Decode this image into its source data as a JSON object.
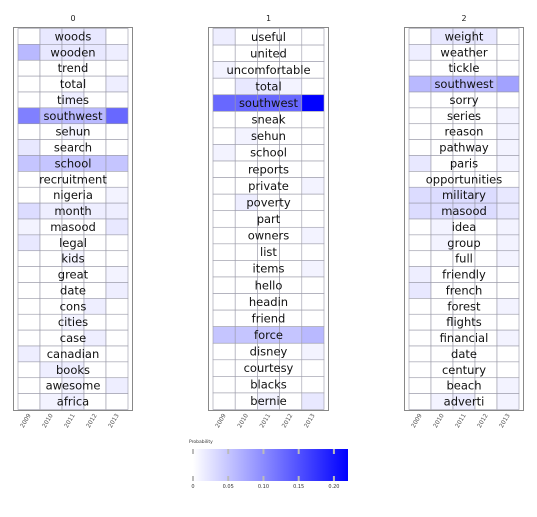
{
  "chart_data": {
    "type": "heatmap",
    "x_categories": [
      "2009",
      "2010",
      "2011",
      "2012",
      "2013"
    ],
    "colorbar": {
      "title": "Probability",
      "range": [
        0,
        0.22
      ],
      "ticks": [
        0,
        0.05,
        0.1,
        0.15,
        0.2
      ],
      "tick_labels": [
        "0",
        "0.05",
        "0.10",
        "0.15",
        "0.20"
      ],
      "color_low": "#ffffff",
      "color_high": "#0000ff"
    },
    "panels": [
      {
        "title": "0",
        "words": [
          "woods",
          "wooden",
          "trend",
          "total",
          "times",
          "southwest",
          "sehun",
          "search",
          "school",
          "recruitment",
          "nigeria",
          "month",
          "masood",
          "legal",
          "kids",
          "great",
          "date",
          "cons",
          "cities",
          "case",
          "canadian",
          "books",
          "awesome",
          "africa"
        ],
        "values": [
          [
            0,
            0.02,
            0.02,
            0.02,
            0
          ],
          [
            0.06,
            0.02,
            0.02,
            0.02,
            0.015
          ],
          [
            0,
            0,
            0,
            0,
            0
          ],
          [
            0,
            0,
            0,
            0,
            0.015
          ],
          [
            0,
            0,
            0.015,
            0,
            0
          ],
          [
            0.11,
            0.06,
            0.06,
            0.06,
            0.13
          ],
          [
            0,
            0,
            0.01,
            0,
            0
          ],
          [
            0.02,
            0,
            0,
            0,
            0
          ],
          [
            0.05,
            0.05,
            0.05,
            0.05,
            0.05
          ],
          [
            0,
            0,
            0,
            0,
            0
          ],
          [
            0,
            0,
            0,
            0,
            0.01
          ],
          [
            0.03,
            0.015,
            0.015,
            0.015,
            0.015
          ],
          [
            0.01,
            0,
            0,
            0,
            0.02
          ],
          [
            0.02,
            0,
            0,
            0,
            0
          ],
          [
            0,
            0,
            0.01,
            0,
            0
          ],
          [
            0,
            0,
            0,
            0,
            0.01
          ],
          [
            0,
            0,
            0,
            0,
            0.015
          ],
          [
            0,
            0,
            0,
            0.015,
            0
          ],
          [
            0,
            0,
            0.01,
            0,
            0
          ],
          [
            0,
            0,
            0,
            0.015,
            0
          ],
          [
            0.015,
            0,
            0,
            0,
            0
          ],
          [
            0,
            0.015,
            0.015,
            0,
            0
          ],
          [
            0,
            0,
            0.01,
            0,
            0.015
          ],
          [
            0,
            0.01,
            0.015,
            0,
            0
          ]
        ]
      },
      {
        "title": "1",
        "words": [
          "useful",
          "united",
          "uncomfortable",
          "total",
          "southwest",
          "sneak",
          "sehun",
          "school",
          "reports",
          "private",
          "poverty",
          "part",
          "owners",
          "list",
          "items",
          "hello",
          "headin",
          "friend",
          "force",
          "disney",
          "courtesy",
          "blacks",
          "bernie"
        ],
        "values": [
          [
            0.015,
            0,
            0,
            0,
            0
          ],
          [
            0,
            0,
            0,
            0,
            0
          ],
          [
            0.01,
            0,
            0,
            0,
            0
          ],
          [
            0,
            0.02,
            0.02,
            0.01,
            0
          ],
          [
            0.13,
            0.13,
            0.13,
            0.13,
            0.22
          ],
          [
            0,
            0,
            0,
            0,
            0
          ],
          [
            0,
            0.01,
            0,
            0,
            0
          ],
          [
            0.01,
            0,
            0,
            0,
            0
          ],
          [
            0,
            0,
            0,
            0,
            0
          ],
          [
            0,
            0,
            0,
            0,
            0.01
          ],
          [
            0,
            0.015,
            0,
            0,
            0
          ],
          [
            0,
            0,
            0,
            0,
            0
          ],
          [
            0,
            0,
            0,
            0,
            0.01
          ],
          [
            0,
            0,
            0,
            0,
            0
          ],
          [
            0,
            0,
            0,
            0,
            0.01
          ],
          [
            0,
            0,
            0,
            0,
            0
          ],
          [
            0,
            0,
            0,
            0,
            0
          ],
          [
            0,
            0,
            0,
            0,
            0
          ],
          [
            0.05,
            0.05,
            0.05,
            0.05,
            0.06
          ],
          [
            0,
            0,
            0,
            0,
            0.01
          ],
          [
            0,
            0,
            0,
            0,
            0
          ],
          [
            0,
            0,
            0,
            0,
            0
          ],
          [
            0,
            0,
            0.01,
            0,
            0.02
          ]
        ]
      },
      {
        "title": "2",
        "words": [
          "weight",
          "weather",
          "tickle",
          "southwest",
          "sorry",
          "series",
          "reason",
          "pathway",
          "paris",
          "opportunities",
          "military",
          "masood",
          "idea",
          "group",
          "full",
          "friendly",
          "french",
          "forest",
          "flights",
          "financial",
          "date",
          "century",
          "beach",
          "adverti"
        ],
        "values": [
          [
            0,
            0.02,
            0.02,
            0.02,
            0
          ],
          [
            0.015,
            0,
            0,
            0,
            0
          ],
          [
            0,
            0,
            0,
            0,
            0
          ],
          [
            0.06,
            0.06,
            0.06,
            0.06,
            0.08
          ],
          [
            0,
            0,
            0,
            0,
            0
          ],
          [
            0,
            0,
            0,
            0,
            0.01
          ],
          [
            0,
            0,
            0,
            0,
            0.01
          ],
          [
            0,
            0,
            0,
            0,
            0.01
          ],
          [
            0.02,
            0,
            0,
            0,
            0.01
          ],
          [
            0,
            0,
            0,
            0,
            0
          ],
          [
            0.03,
            0.03,
            0.03,
            0.03,
            0.02
          ],
          [
            0.03,
            0.03,
            0.03,
            0.03,
            0.02
          ],
          [
            0,
            0.01,
            0,
            0,
            0.01
          ],
          [
            0,
            0.01,
            0,
            0,
            0.01
          ],
          [
            0,
            0,
            0,
            0,
            0.01
          ],
          [
            0.015,
            0,
            0,
            0,
            0
          ],
          [
            0.02,
            0,
            0,
            0,
            0
          ],
          [
            0,
            0,
            0,
            0,
            0.01
          ],
          [
            0,
            0,
            0,
            0,
            0
          ],
          [
            0,
            0,
            0,
            0,
            0.01
          ],
          [
            0,
            0,
            0,
            0,
            0
          ],
          [
            0,
            0,
            0,
            0,
            0
          ],
          [
            0,
            0,
            0,
            0,
            0.01
          ],
          [
            0,
            0.01,
            0.015,
            0,
            0.01
          ]
        ]
      }
    ]
  }
}
